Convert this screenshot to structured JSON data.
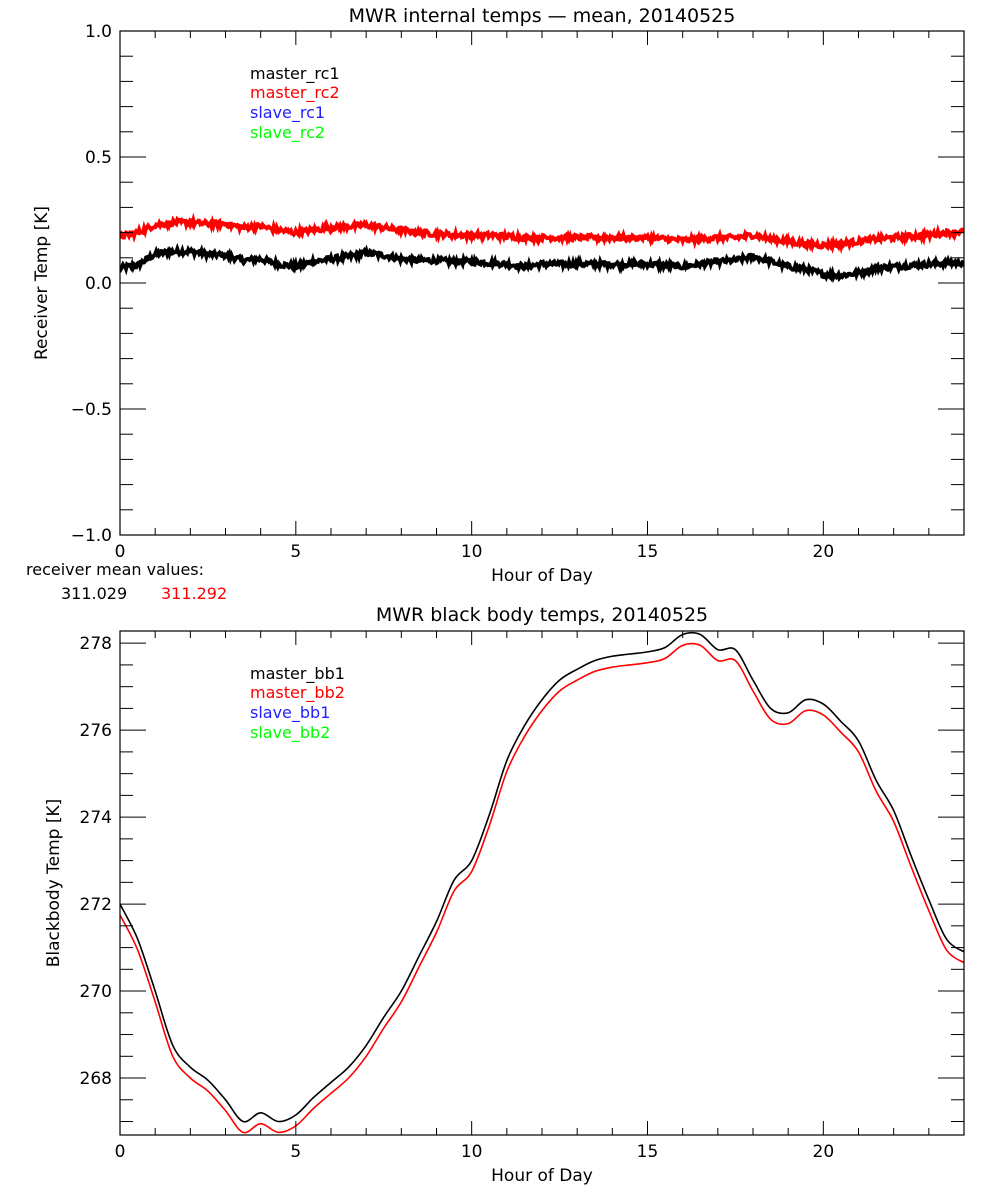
{
  "chart_data": [
    {
      "type": "line",
      "title": "MWR internal temps — mean, 20140525",
      "xlabel": "Hour of Day",
      "ylabel": "Receiver Temp [K]",
      "xlim": [
        0,
        24
      ],
      "ylim": [
        -1.0,
        1.0
      ],
      "xticks": [
        0,
        5,
        10,
        15,
        20
      ],
      "xtick_labels": [
        "0",
        "5",
        "10",
        "15",
        "20"
      ],
      "x_minor_step": 1,
      "yticks": [
        -1.0,
        -0.5,
        0.0,
        0.5,
        1.0
      ],
      "ytick_labels": [
        "−1.0",
        "−0.5",
        "0.0",
        "0.5",
        "1.0"
      ],
      "y_minor_step": 0.1,
      "grid": false,
      "legend_position": "top-left",
      "legend": [
        {
          "label": "master_rc1",
          "color": "#000000"
        },
        {
          "label": "master_rc2",
          "color": "#ff0000"
        },
        {
          "label": "slave_rc1",
          "color": "#2020ff"
        },
        {
          "label": "slave_rc2",
          "color": "#00ff00"
        }
      ],
      "x": [
        0,
        0.5,
        1,
        1.5,
        2,
        2.5,
        3,
        3.5,
        4,
        4.5,
        5,
        5.5,
        6,
        6.5,
        7,
        7.5,
        8,
        8.5,
        9,
        9.5,
        10,
        10.5,
        11,
        11.5,
        12,
        12.5,
        13,
        13.5,
        14,
        14.5,
        15,
        15.5,
        16,
        16.5,
        17,
        17.5,
        18,
        18.5,
        19,
        19.5,
        20,
        20.5,
        21,
        21.5,
        22,
        22.5,
        23,
        23.5,
        24
      ],
      "series": [
        {
          "name": "master_rc1",
          "color": "#000000",
          "values": [
            0.06,
            0.07,
            0.115,
            0.125,
            0.125,
            0.115,
            0.11,
            0.09,
            0.095,
            0.075,
            0.065,
            0.085,
            0.095,
            0.105,
            0.12,
            0.11,
            0.095,
            0.09,
            0.09,
            0.085,
            0.085,
            0.08,
            0.075,
            0.065,
            0.075,
            0.075,
            0.075,
            0.075,
            0.075,
            0.075,
            0.075,
            0.07,
            0.065,
            0.075,
            0.085,
            0.09,
            0.105,
            0.085,
            0.065,
            0.055,
            0.035,
            0.03,
            0.04,
            0.06,
            0.065,
            0.07,
            0.075,
            0.08,
            0.08
          ]
        },
        {
          "name": "master_rc2",
          "color": "#ff0000",
          "values": [
            0.185,
            0.2,
            0.23,
            0.24,
            0.24,
            0.235,
            0.235,
            0.22,
            0.225,
            0.21,
            0.2,
            0.21,
            0.22,
            0.225,
            0.23,
            0.22,
            0.21,
            0.2,
            0.195,
            0.19,
            0.19,
            0.19,
            0.185,
            0.18,
            0.18,
            0.18,
            0.18,
            0.18,
            0.18,
            0.18,
            0.18,
            0.175,
            0.17,
            0.175,
            0.18,
            0.18,
            0.19,
            0.175,
            0.165,
            0.155,
            0.15,
            0.155,
            0.165,
            0.175,
            0.18,
            0.185,
            0.19,
            0.2,
            0.205
          ]
        }
      ],
      "annotation": {
        "label": "receiver mean values:",
        "values": [
          {
            "text": "311.029",
            "color": "#000000"
          },
          {
            "text": "311.292",
            "color": "#ff0000"
          }
        ]
      }
    },
    {
      "type": "line",
      "title": "MWR black body temps, 20140525",
      "xlabel": "Hour of Day",
      "ylabel": "Blackbody Temp [K]",
      "xlim": [
        0,
        24
      ],
      "ylim": [
        266.69,
        278.28
      ],
      "xticks": [
        0,
        5,
        10,
        15,
        20
      ],
      "xtick_labels": [
        "0",
        "5",
        "10",
        "15",
        "20"
      ],
      "x_minor_step": 1,
      "yticks": [
        268,
        270,
        272,
        274,
        276,
        278
      ],
      "ytick_labels": [
        "268",
        "270",
        "272",
        "274",
        "276",
        "278"
      ],
      "y_minor_step": 0.5,
      "grid": false,
      "legend_position": "top-left",
      "legend": [
        {
          "label": "master_bb1",
          "color": "#000000"
        },
        {
          "label": "master_bb2",
          "color": "#ff0000"
        },
        {
          "label": "slave_bb1",
          "color": "#2020ff"
        },
        {
          "label": "slave_bb2",
          "color": "#00ff00"
        }
      ],
      "x": [
        0,
        0.5,
        1,
        1.5,
        2,
        2.5,
        3,
        3.5,
        4,
        4.5,
        5,
        5.5,
        6,
        6.5,
        7,
        7.5,
        8,
        8.5,
        9,
        9.5,
        10,
        10.5,
        11,
        11.5,
        12,
        12.5,
        13,
        13.5,
        14,
        14.5,
        15,
        15.5,
        16,
        16.5,
        17,
        17.5,
        18,
        18.5,
        19,
        19.5,
        20,
        20.5,
        21,
        21.5,
        22,
        22.5,
        23,
        23.5,
        24
      ],
      "series": [
        {
          "name": "master_bb1",
          "color": "#000000",
          "values": [
            272.0,
            271.2,
            270.0,
            268.75,
            268.25,
            267.95,
            267.5,
            267.0,
            267.2,
            267.0,
            267.15,
            267.55,
            267.9,
            268.25,
            268.75,
            269.4,
            270.0,
            270.8,
            271.6,
            272.55,
            273.0,
            274.05,
            275.3,
            276.1,
            276.7,
            277.15,
            277.4,
            277.6,
            277.7,
            277.75,
            277.8,
            277.9,
            278.2,
            278.2,
            277.85,
            277.85,
            277.15,
            276.5,
            276.4,
            276.7,
            276.6,
            276.2,
            275.75,
            274.85,
            274.15,
            273.1,
            272.1,
            271.2,
            270.9
          ]
        },
        {
          "name": "master_bb2",
          "color": "#ff0000",
          "values": [
            271.75,
            270.95,
            269.75,
            268.5,
            268.0,
            267.7,
            267.25,
            266.75,
            266.95,
            266.75,
            266.9,
            267.3,
            267.65,
            268.0,
            268.5,
            269.15,
            269.75,
            270.55,
            271.35,
            272.3,
            272.75,
            273.8,
            275.05,
            275.85,
            276.45,
            276.9,
            277.15,
            277.35,
            277.45,
            277.5,
            277.55,
            277.65,
            277.95,
            277.95,
            277.6,
            277.6,
            276.9,
            276.25,
            276.15,
            276.45,
            276.35,
            275.95,
            275.5,
            274.6,
            273.9,
            272.85,
            271.85,
            270.95,
            270.65
          ]
        }
      ]
    }
  ]
}
